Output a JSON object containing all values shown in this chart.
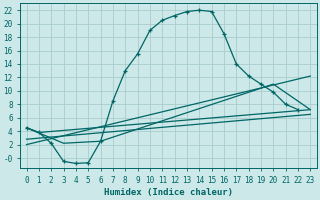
{
  "xlabel": "Humidex (Indice chaleur)",
  "bg_color": "#cce8e8",
  "grid_color": "#aacccc",
  "line_color": "#006666",
  "xlim": [
    -0.5,
    23.5
  ],
  "ylim": [
    -1.5,
    23
  ],
  "xticks": [
    0,
    1,
    2,
    3,
    4,
    5,
    6,
    7,
    8,
    9,
    10,
    11,
    12,
    13,
    14,
    15,
    16,
    17,
    18,
    19,
    20,
    21,
    22,
    23
  ],
  "yticks": [
    0,
    2,
    4,
    6,
    8,
    10,
    12,
    14,
    16,
    18,
    20,
    22
  ],
  "ytick_labels": [
    "-0",
    "2",
    "4",
    "6",
    "8",
    "10",
    "12",
    "14",
    "16",
    "18",
    "20",
    "22"
  ],
  "curve1_x": [
    0,
    1,
    2,
    3,
    4,
    5,
    6,
    7,
    8,
    9,
    10,
    11,
    12,
    13,
    14,
    15,
    16,
    17,
    18,
    19,
    20,
    21,
    22
  ],
  "curve1_y": [
    4.5,
    3.8,
    2.2,
    -0.5,
    -0.8,
    -0.7,
    2.5,
    8.5,
    13.0,
    15.5,
    19.0,
    20.5,
    21.2,
    21.8,
    22.0,
    21.8,
    18.5,
    14.0,
    12.2,
    11.0,
    9.8,
    8.0,
    7.2
  ],
  "line2_x": [
    0,
    1,
    23
  ],
  "line2_y": [
    4.5,
    3.8,
    7.2
  ],
  "line3_x": [
    0,
    3,
    6,
    20,
    23
  ],
  "line3_y": [
    4.5,
    2.2,
    2.5,
    11.0,
    7.2
  ],
  "line4_x": [
    0,
    23
  ],
  "line4_y": [
    2.8,
    6.5
  ],
  "line5_x": [
    0,
    23
  ],
  "line5_y": [
    2.0,
    12.2
  ]
}
